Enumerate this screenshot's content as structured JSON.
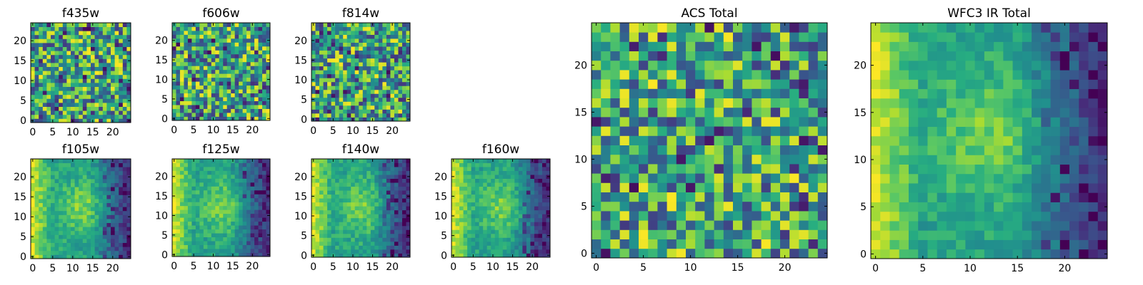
{
  "chart_data": [
    {
      "type": "heatmap",
      "title": "f435w",
      "grid": false,
      "xlim": [
        -0.5,
        24.5
      ],
      "ylim": [
        -0.5,
        24.5
      ],
      "xticks": [
        0,
        5,
        10,
        15,
        20
      ],
      "yticks": [
        0,
        5,
        10,
        15,
        20
      ],
      "colormap": "viridis",
      "n": 25,
      "texture": "speckle",
      "seed": 11
    },
    {
      "type": "heatmap",
      "title": "f606w",
      "grid": false,
      "xlim": [
        -0.5,
        24.5
      ],
      "ylim": [
        -0.5,
        24.5
      ],
      "xticks": [
        0,
        5,
        10,
        15,
        20
      ],
      "yticks": [
        0,
        5,
        10,
        15,
        20
      ],
      "colormap": "viridis",
      "n": 25,
      "texture": "speckle",
      "seed": 23
    },
    {
      "type": "heatmap",
      "title": "f814w",
      "grid": false,
      "xlim": [
        -0.5,
        24.5
      ],
      "ylim": [
        -0.5,
        24.5
      ],
      "xticks": [
        0,
        5,
        10,
        15,
        20
      ],
      "yticks": [
        0,
        5,
        10,
        15,
        20
      ],
      "colormap": "viridis",
      "n": 25,
      "texture": "speckle",
      "seed": 37
    },
    {
      "type": "heatmap",
      "title": "f105w",
      "grid": false,
      "xlim": [
        -0.5,
        24.5
      ],
      "ylim": [
        -0.5,
        24.5
      ],
      "xticks": [
        0,
        5,
        10,
        15,
        20
      ],
      "yticks": [
        0,
        5,
        10,
        15,
        20
      ],
      "colormap": "viridis",
      "n": 25,
      "texture": "smooth",
      "seed": 41
    },
    {
      "type": "heatmap",
      "title": "f125w",
      "grid": false,
      "xlim": [
        -0.5,
        24.5
      ],
      "ylim": [
        -0.5,
        24.5
      ],
      "xticks": [
        0,
        5,
        10,
        15,
        20
      ],
      "yticks": [
        0,
        5,
        10,
        15,
        20
      ],
      "colormap": "viridis",
      "n": 25,
      "texture": "smooth",
      "seed": 53
    },
    {
      "type": "heatmap",
      "title": "f140w",
      "grid": false,
      "xlim": [
        -0.5,
        24.5
      ],
      "ylim": [
        -0.5,
        24.5
      ],
      "xticks": [
        0,
        5,
        10,
        15,
        20
      ],
      "yticks": [
        0,
        5,
        10,
        15,
        20
      ],
      "colormap": "viridis",
      "n": 25,
      "texture": "smooth",
      "seed": 67
    },
    {
      "type": "heatmap",
      "title": "f160w",
      "grid": false,
      "xlim": [
        -0.5,
        24.5
      ],
      "ylim": [
        -0.5,
        24.5
      ],
      "xticks": [
        0,
        5,
        10,
        15,
        20
      ],
      "yticks": [
        0,
        5,
        10,
        15,
        20
      ],
      "colormap": "viridis",
      "n": 25,
      "texture": "smooth",
      "seed": 79
    },
    {
      "type": "heatmap",
      "title": "ACS Total",
      "grid": false,
      "xlim": [
        -0.5,
        24.5
      ],
      "ylim": [
        -0.5,
        24.5
      ],
      "xticks": [
        0,
        5,
        10,
        15,
        20
      ],
      "yticks": [
        0,
        5,
        10,
        15,
        20
      ],
      "colormap": "viridis",
      "n": 25,
      "texture": "speckle",
      "seed": 97
    },
    {
      "type": "heatmap",
      "title": "WFC3 IR Total",
      "grid": false,
      "xlim": [
        -0.5,
        24.5
      ],
      "ylim": [
        -0.5,
        24.5
      ],
      "xticks": [
        0,
        5,
        10,
        15,
        20
      ],
      "yticks": [
        0,
        5,
        10,
        15,
        20
      ],
      "colormap": "viridis",
      "n": 25,
      "texture": "smooth",
      "seed": 101
    }
  ]
}
